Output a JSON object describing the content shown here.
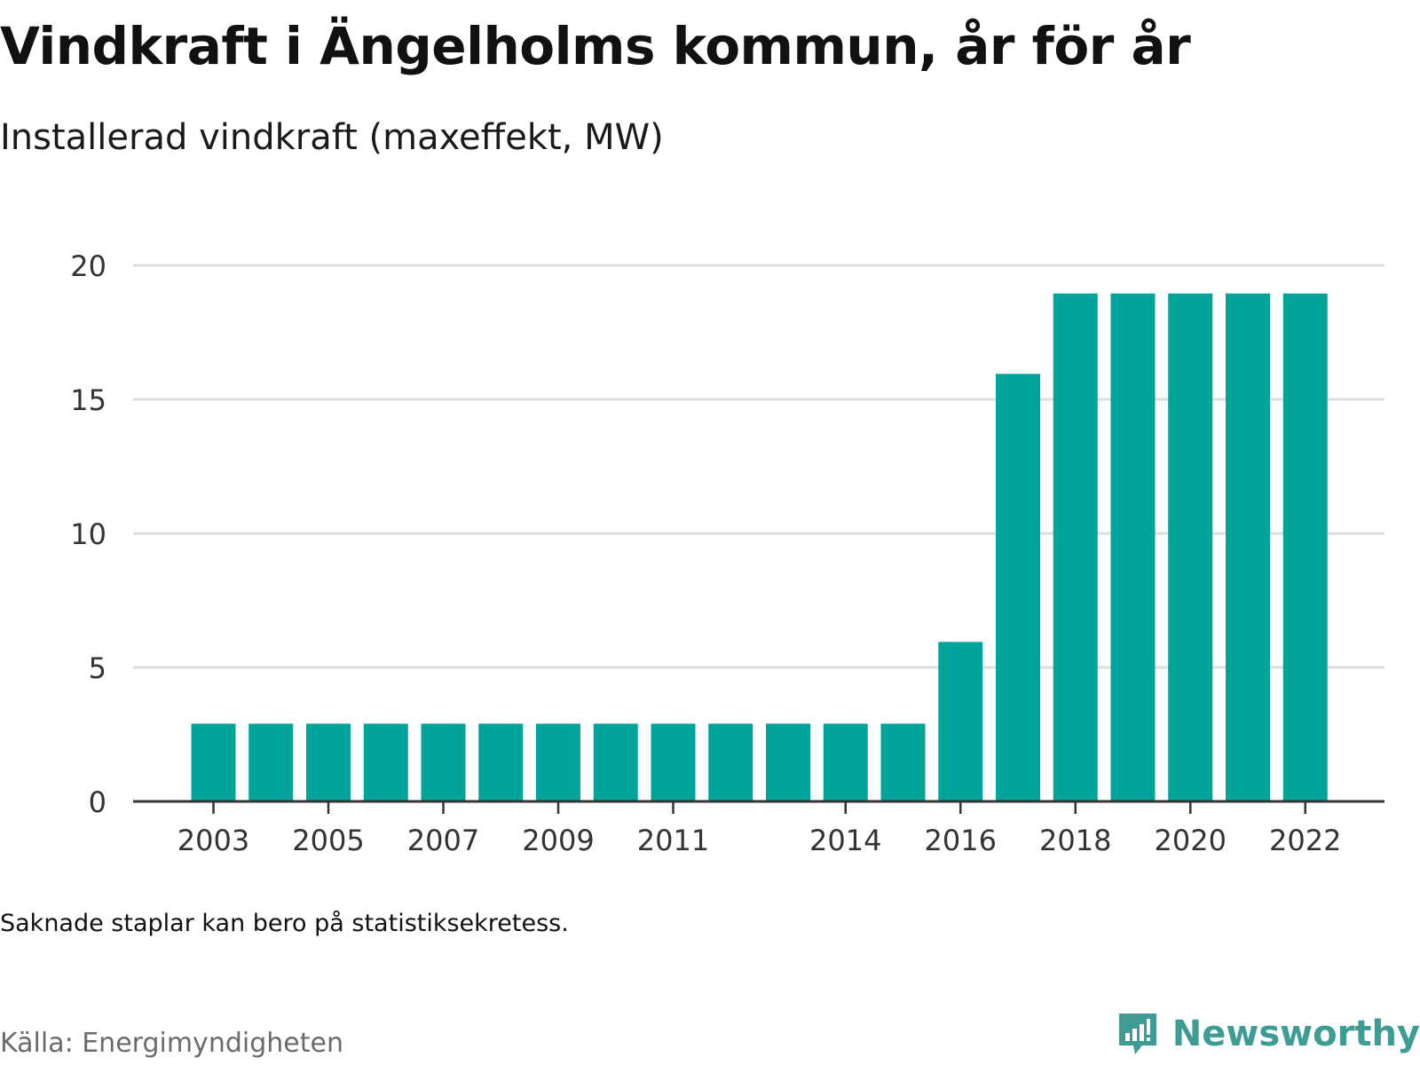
{
  "title": "Vindkraft i Ängelholms kommun, år för år",
  "subtitle": "Installerad vindkraft (maxeffekt, MW)",
  "note": "Saknade staplar kan bero på statistiksekretess.",
  "source": "Källa: Energimyndigheten",
  "brand": {
    "name": "Newsworthy",
    "logo_icon": "newsworthy-chart-bubble-icon",
    "color": "#3d9c94"
  },
  "colors": {
    "bar": "#00a49a",
    "grid": "#dddddd",
    "axis": "#333333"
  },
  "chart_data": {
    "type": "bar",
    "categories": [
      "2003",
      "2004",
      "2005",
      "2006",
      "2007",
      "2008",
      "2009",
      "2010",
      "2011",
      "2012",
      "2013",
      "2014",
      "2015",
      "2016",
      "2017",
      "2018",
      "2019",
      "2020",
      "2021",
      "2022"
    ],
    "values": [
      2.9,
      2.9,
      2.9,
      2.9,
      2.9,
      2.9,
      2.9,
      2.9,
      2.9,
      2.9,
      2.9,
      2.9,
      2.9,
      5.95,
      15.95,
      18.95,
      18.95,
      18.95,
      18.95,
      18.95
    ],
    "x_tick_labels": [
      "2003",
      "2005",
      "2007",
      "2009",
      "2011",
      "2014",
      "2016",
      "2018",
      "2020",
      "2022"
    ],
    "y_ticks": [
      "0",
      "5",
      "10",
      "15",
      "20"
    ],
    "ylim": [
      0,
      20
    ],
    "grid": true
  }
}
